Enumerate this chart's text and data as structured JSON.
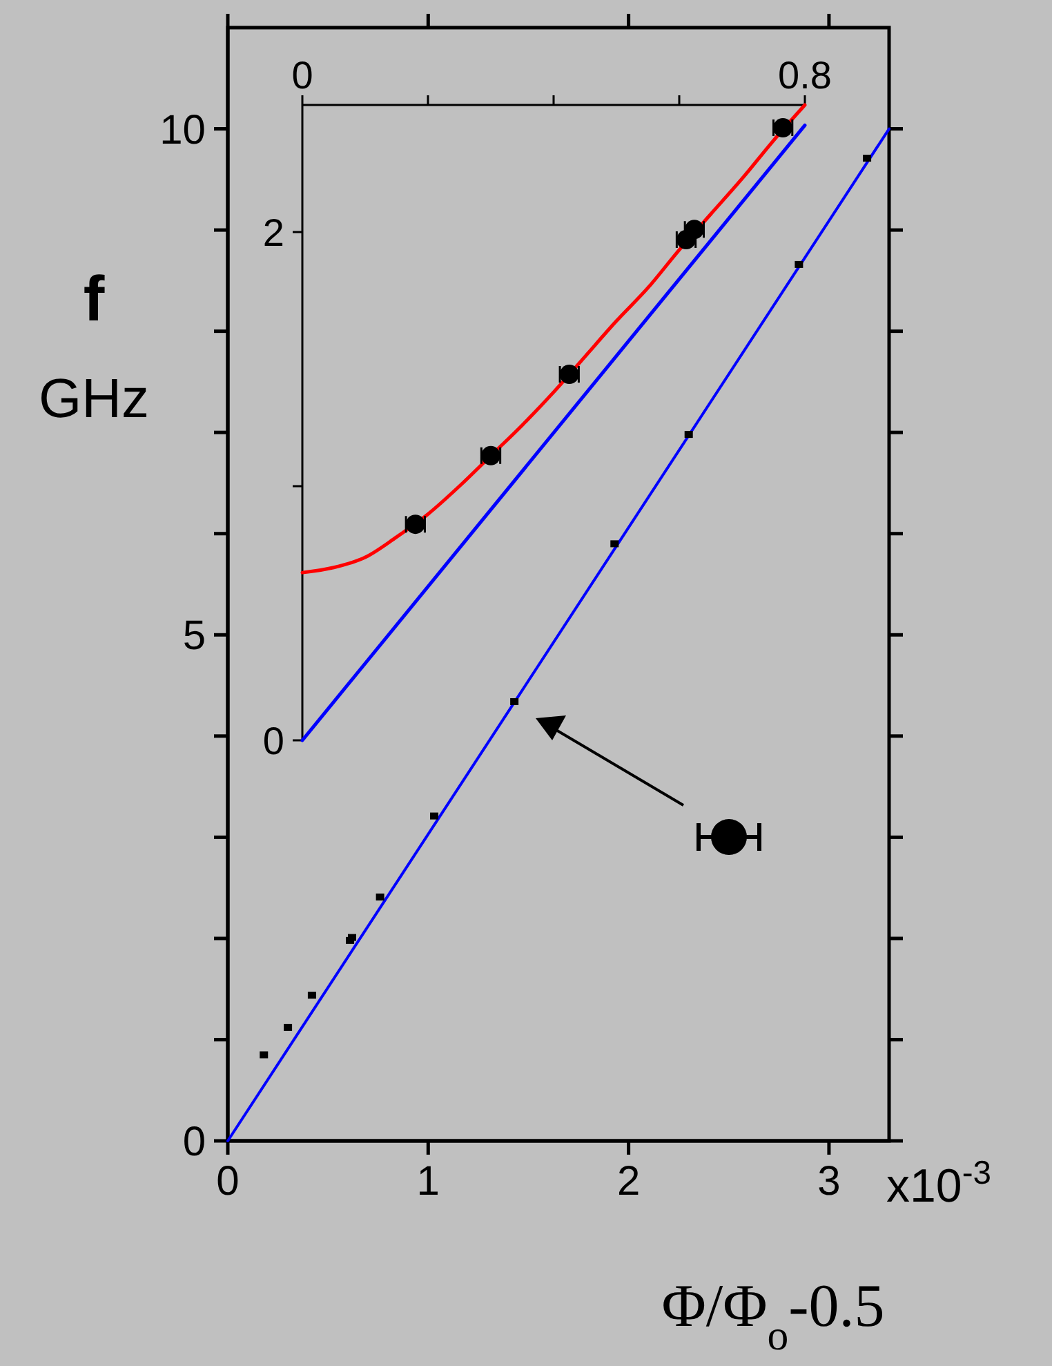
{
  "chart_data": [
    {
      "type": "scatter",
      "xlabel": "Φ/Φ$_{o}$-0.5",
      "ylabel": "f GHz",
      "annotations": [
        "x10$^{-3}$"
      ],
      "xlim": [
        0,
        3.3
      ],
      "xticks": [
        0,
        1,
        2,
        3
      ],
      "ylim": [
        0,
        11
      ],
      "yticks": [
        0,
        {
          "value": 1,
          "label": null
        },
        {
          "value": 2,
          "label": null
        },
        {
          "value": 3,
          "label": null
        },
        {
          "value": 4,
          "label": null
        },
        5,
        {
          "value": 6,
          "label": null
        },
        {
          "value": 7,
          "label": null
        },
        {
          "value": 8,
          "label": null
        },
        {
          "value": 9,
          "label": null
        },
        10
      ],
      "series": [
        {
          "type": "line",
          "color": "#0000ff",
          "x": [
            0,
            3.3
          ],
          "values": [
            0,
            10
          ]
        },
        {
          "type": "scatter",
          "marker": "square",
          "color": "#000000",
          "x": [
            0.18,
            0.3,
            0.42,
            0.61,
            0.62,
            0.76,
            1.03,
            1.43,
            1.93,
            2.3,
            2.85,
            3.19
          ],
          "values": [
            0.85,
            1.12,
            1.44,
            1.98,
            2.01,
            2.41,
            3.21,
            4.34,
            5.9,
            6.98,
            8.66,
            9.71
          ]
        }
      ]
    },
    {
      "type": "scatter",
      "xlim": [
        0,
        0.8
      ],
      "xticks": [
        0,
        {
          "value": 0.2,
          "label": null
        },
        {
          "value": 0.4,
          "label": null
        },
        {
          "value": 0.6,
          "label": null
        },
        0.8
      ],
      "ylim": [
        0,
        2.5
      ],
      "yticks": [
        0,
        {
          "value": 1,
          "label": null
        },
        2
      ],
      "series": [
        {
          "type": "line",
          "color": "#ff0000",
          "x": [
            0,
            0.05,
            0.1,
            0.15,
            0.2,
            0.25,
            0.3,
            0.35,
            0.4,
            0.45,
            0.5,
            0.55,
            0.6,
            0.65,
            0.7,
            0.75,
            0.8
          ],
          "values": [
            0.66,
            0.68,
            0.72,
            0.8,
            0.89,
            1.0,
            1.12,
            1.24,
            1.37,
            1.51,
            1.65,
            1.78,
            1.93,
            2.07,
            2.21,
            2.36,
            2.5
          ]
        },
        {
          "type": "line",
          "color": "#0000ff",
          "x": [
            0,
            0.8
          ],
          "values": [
            0,
            2.42
          ]
        },
        {
          "type": "scatter",
          "color": "#000000",
          "x": [
            0.18,
            0.3,
            0.425,
            0.611,
            0.624,
            0.765
          ],
          "values": [
            0.85,
            1.12,
            1.44,
            1.97,
            2.01,
            2.41
          ],
          "xerrors": [
            0.015,
            0.015,
            0.015,
            0.015,
            0.015,
            0.015
          ]
        }
      ]
    }
  ]
}
